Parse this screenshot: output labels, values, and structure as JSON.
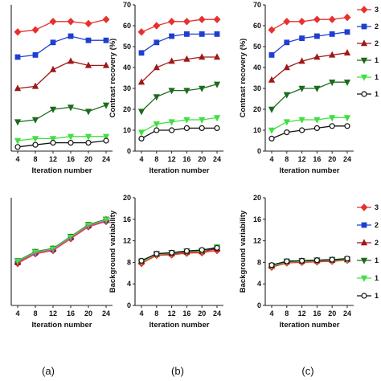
{
  "chart_data": [
    {
      "panel": "a-top",
      "type": "line",
      "xlabel": "Iteration number",
      "ylabel": "",
      "x": [
        4,
        8,
        12,
        16,
        20,
        24
      ],
      "xticks": [
        "4",
        "8",
        "12",
        "16",
        "20",
        "24"
      ],
      "ylim": [
        0,
        70
      ],
      "yticks": [],
      "series": [
        {
          "values": [
            57,
            58,
            62,
            62,
            61,
            63
          ],
          "color": "#e8312f",
          "marker": "diamond",
          "fill": true
        },
        {
          "values": [
            45,
            46,
            52,
            55,
            53,
            53
          ],
          "color": "#1f3fd1",
          "marker": "square",
          "fill": true
        },
        {
          "values": [
            30,
            31,
            39,
            43,
            41,
            41
          ],
          "color": "#a01818",
          "marker": "triangle-up",
          "fill": true
        },
        {
          "values": [
            14,
            15,
            20,
            21,
            19,
            22
          ],
          "color": "#1d6b1d",
          "marker": "triangle-down",
          "fill": true
        },
        {
          "values": [
            5,
            6,
            6,
            7,
            7,
            7
          ],
          "color": "#3fe040",
          "marker": "triangle-down",
          "fill": true
        },
        {
          "values": [
            2,
            3,
            4,
            4,
            4,
            5
          ],
          "color": "#111111",
          "marker": "circle",
          "fill": false
        }
      ]
    },
    {
      "panel": "b-top",
      "type": "line",
      "xlabel": "Iteration number",
      "ylabel": "Contrast recovery   (%)",
      "x": [
        4,
        8,
        12,
        16,
        20,
        24
      ],
      "xticks": [
        "4",
        "8",
        "12",
        "16",
        "20",
        "24"
      ],
      "ylim": [
        0,
        70
      ],
      "yticks": [
        "0",
        "10",
        "20",
        "30",
        "40",
        "50",
        "60",
        "70"
      ],
      "series": [
        {
          "values": [
            57,
            60,
            62,
            62,
            63,
            63
          ],
          "color": "#e8312f",
          "marker": "diamond",
          "fill": true
        },
        {
          "values": [
            47,
            52,
            55,
            56,
            56,
            56
          ],
          "color": "#1f3fd1",
          "marker": "square",
          "fill": true
        },
        {
          "values": [
            33,
            40,
            43,
            44,
            45,
            45
          ],
          "color": "#a01818",
          "marker": "triangle-up",
          "fill": true
        },
        {
          "values": [
            19,
            26,
            29,
            29,
            30,
            32
          ],
          "color": "#1d6b1d",
          "marker": "triangle-down",
          "fill": true
        },
        {
          "values": [
            9,
            13,
            14,
            15,
            15,
            16
          ],
          "color": "#3fe040",
          "marker": "triangle-down",
          "fill": true
        },
        {
          "values": [
            6,
            10,
            10,
            11,
            11,
            11
          ],
          "color": "#111111",
          "marker": "circle",
          "fill": false
        }
      ]
    },
    {
      "panel": "c-top",
      "type": "line",
      "xlabel": "Iteration number",
      "ylabel": "Contrast recovery   (%)",
      "x": [
        4,
        8,
        12,
        16,
        20,
        24
      ],
      "xticks": [
        "4",
        "8",
        "12",
        "16",
        "20",
        "24"
      ],
      "ylim": [
        0,
        70
      ],
      "yticks": [
        "0",
        "10",
        "20",
        "30",
        "40",
        "50",
        "60",
        "70"
      ],
      "series": [
        {
          "values": [
            58,
            62,
            62,
            63,
            63,
            64
          ],
          "color": "#e8312f",
          "marker": "diamond",
          "fill": true
        },
        {
          "values": [
            46,
            52,
            54,
            55,
            56,
            57
          ],
          "color": "#1f3fd1",
          "marker": "square",
          "fill": true
        },
        {
          "values": [
            34,
            40,
            43,
            45,
            46,
            47
          ],
          "color": "#a01818",
          "marker": "triangle-up",
          "fill": true
        },
        {
          "values": [
            20,
            27,
            30,
            30,
            33,
            33
          ],
          "color": "#1d6b1d",
          "marker": "triangle-down",
          "fill": true
        },
        {
          "values": [
            10,
            14,
            15,
            15,
            16,
            16
          ],
          "color": "#3fe040",
          "marker": "triangle-down",
          "fill": true
        },
        {
          "values": [
            6,
            9,
            10,
            11,
            12,
            12
          ],
          "color": "#111111",
          "marker": "circle",
          "fill": false
        }
      ]
    },
    {
      "panel": "a-bottom",
      "type": "line",
      "xlabel": "Iteration number",
      "ylabel": "",
      "x": [
        4,
        8,
        12,
        16,
        20,
        24
      ],
      "xticks": [
        "4",
        "8",
        "12",
        "16",
        "20",
        "24"
      ],
      "ylim": [
        0,
        20
      ],
      "yticks": [],
      "series": [
        {
          "values": [
            7.8,
            9.6,
            10.2,
            12.4,
            14.6,
            15.6
          ],
          "color": "#e8312f",
          "marker": "diamond",
          "fill": true
        },
        {
          "values": [
            8.0,
            9.8,
            10.4,
            12.6,
            14.8,
            15.8
          ],
          "color": "#1f3fd1",
          "marker": "square",
          "fill": true
        },
        {
          "values": [
            8.0,
            9.9,
            10.5,
            12.7,
            14.9,
            15.9
          ],
          "color": "#a01818",
          "marker": "triangle-up",
          "fill": true
        },
        {
          "values": [
            8.3,
            10.0,
            10.6,
            12.8,
            15.0,
            16.0
          ],
          "color": "#1d6b1d",
          "marker": "triangle-down",
          "fill": true
        },
        {
          "values": [
            8.2,
            9.9,
            10.5,
            12.7,
            14.9,
            15.9
          ],
          "color": "#3fe040",
          "marker": "triangle-down",
          "fill": true
        },
        {
          "values": [
            7.9,
            9.7,
            10.3,
            12.5,
            14.7,
            15.7
          ],
          "color": "#e040a0",
          "marker": "none",
          "fill": true
        }
      ]
    },
    {
      "panel": "b-bottom",
      "type": "line",
      "xlabel": "Iteration number",
      "ylabel": "Background variability",
      "x": [
        4,
        8,
        12,
        16,
        20,
        24
      ],
      "xticks": [
        "4",
        "8",
        "12",
        "16",
        "20",
        "24"
      ],
      "ylim": [
        0,
        20
      ],
      "yticks": [
        "0",
        "4",
        "8",
        "12",
        "16",
        "20"
      ],
      "series": [
        {
          "values": [
            7.8,
            9.3,
            9.4,
            9.7,
            9.8,
            10.2
          ],
          "color": "#e8312f",
          "marker": "diamond",
          "fill": true
        },
        {
          "values": [
            8.2,
            9.6,
            9.7,
            10.0,
            10.1,
            10.6
          ],
          "color": "#1f3fd1",
          "marker": "square",
          "fill": true
        },
        {
          "values": [
            8.1,
            9.5,
            9.6,
            9.9,
            10.0,
            10.5
          ],
          "color": "#a01818",
          "marker": "triangle-up",
          "fill": true
        },
        {
          "values": [
            8.2,
            9.6,
            9.8,
            10.1,
            10.2,
            10.8
          ],
          "color": "#1d6b1d",
          "marker": "triangle-down",
          "fill": true
        },
        {
          "values": [
            8.1,
            9.5,
            9.7,
            10.0,
            10.1,
            10.9
          ],
          "color": "#3fe040",
          "marker": "triangle-down",
          "fill": true
        },
        {
          "values": [
            8.3,
            9.6,
            9.8,
            10.1,
            10.3,
            10.7
          ],
          "color": "#111111",
          "marker": "circle",
          "fill": false
        }
      ]
    },
    {
      "panel": "c-bottom",
      "type": "line",
      "xlabel": "Iteration number",
      "ylabel": "Background variability",
      "x": [
        4,
        8,
        12,
        16,
        20,
        24
      ],
      "xticks": [
        "4",
        "8",
        "12",
        "16",
        "20",
        "24"
      ],
      "ylim": [
        0,
        20
      ],
      "yticks": [
        "0",
        "4",
        "8",
        "12",
        "16",
        "20"
      ],
      "series": [
        {
          "values": [
            7.1,
            7.9,
            8.0,
            8.1,
            8.2,
            8.4
          ],
          "color": "#e8312f",
          "marker": "diamond",
          "fill": true
        },
        {
          "values": [
            7.4,
            8.2,
            8.3,
            8.4,
            8.5,
            8.6
          ],
          "color": "#1f3fd1",
          "marker": "square",
          "fill": true
        },
        {
          "values": [
            7.3,
            8.1,
            8.2,
            8.3,
            8.4,
            8.5
          ],
          "color": "#a01818",
          "marker": "triangle-up",
          "fill": true
        },
        {
          "values": [
            7.4,
            8.2,
            8.3,
            8.4,
            8.5,
            8.6
          ],
          "color": "#1d6b1d",
          "marker": "triangle-down",
          "fill": true
        },
        {
          "values": [
            7.3,
            8.1,
            8.2,
            8.3,
            8.4,
            8.5
          ],
          "color": "#3fe040",
          "marker": "triangle-down",
          "fill": true
        },
        {
          "values": [
            7.5,
            8.2,
            8.3,
            8.4,
            8.5,
            8.7
          ],
          "color": "#111111",
          "marker": "circle",
          "fill": false
        }
      ]
    }
  ],
  "legends": [
    {
      "panel": "top",
      "entries": [
        {
          "label": "3",
          "color": "#e8312f",
          "marker": "diamond",
          "fill": true
        },
        {
          "label": "2",
          "color": "#1f3fd1",
          "marker": "square",
          "fill": true
        },
        {
          "label": "2",
          "color": "#a01818",
          "marker": "triangle-up",
          "fill": true
        },
        {
          "label": "1",
          "color": "#1d6b1d",
          "marker": "triangle-down",
          "fill": true
        },
        {
          "label": "1",
          "color": "#3fe040",
          "marker": "triangle-down",
          "fill": true
        },
        {
          "label": "1",
          "color": "#111111",
          "marker": "circle",
          "fill": false
        }
      ]
    },
    {
      "panel": "bottom",
      "entries": [
        {
          "label": "3",
          "color": "#e8312f",
          "marker": "diamond",
          "fill": true
        },
        {
          "label": "2",
          "color": "#1f3fd1",
          "marker": "square",
          "fill": true
        },
        {
          "label": "2",
          "color": "#a01818",
          "marker": "triangle-up",
          "fill": true
        },
        {
          "label": "1",
          "color": "#1d6b1d",
          "marker": "triangle-down",
          "fill": true
        },
        {
          "label": "1",
          "color": "#3fe040",
          "marker": "triangle-down",
          "fill": true
        },
        {
          "label": "1",
          "color": "#111111",
          "marker": "circle",
          "fill": false
        }
      ]
    }
  ],
  "panel_labels": [
    "(a)",
    "(b)",
    "(c)"
  ]
}
